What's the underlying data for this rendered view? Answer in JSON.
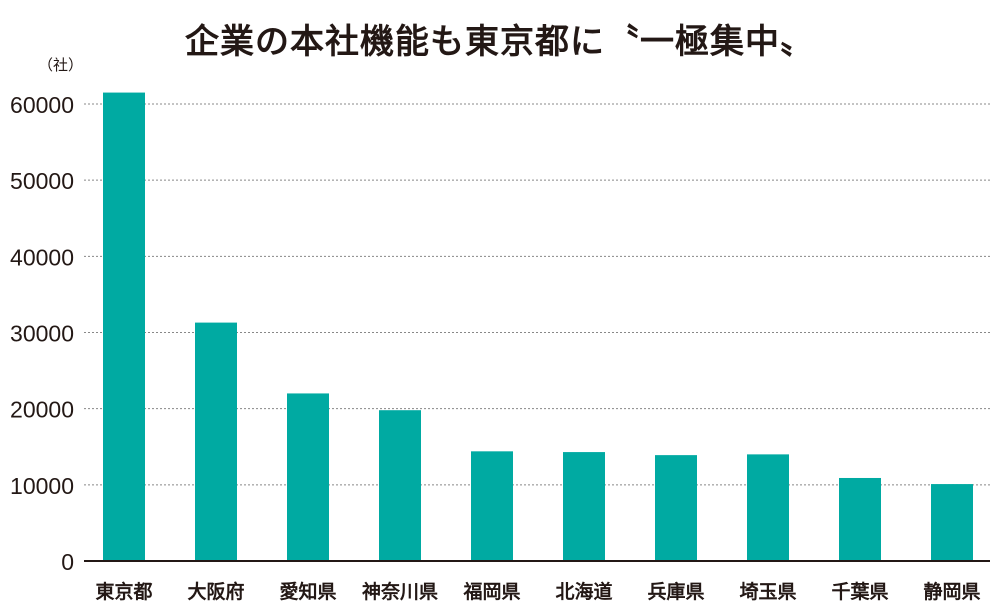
{
  "chart_data": {
    "type": "bar",
    "title": "企業の本社機能も東京都に〝一極集中〟",
    "ylabel": "（社）",
    "xlabel": "",
    "categories": [
      "東京都",
      "大阪府",
      "愛知県",
      "神奈川県",
      "福岡県",
      "北海道",
      "兵庫県",
      "埼玉県",
      "千葉県",
      "静岡県"
    ],
    "values": [
      61500,
      31300,
      22000,
      19800,
      14400,
      14300,
      13900,
      14000,
      10900,
      10100
    ],
    "ylim": [
      0,
      60000
    ],
    "yticks": [
      0,
      10000,
      20000,
      30000,
      40000,
      50000,
      60000
    ],
    "ytick_labels": [
      "0",
      "10000",
      "20000",
      "30000",
      "40000",
      "50000",
      "60000"
    ],
    "grid": true,
    "colors": {
      "bar": "#00aaa2",
      "grid": "#888888",
      "axis": "#231815",
      "text": "#231815"
    }
  }
}
